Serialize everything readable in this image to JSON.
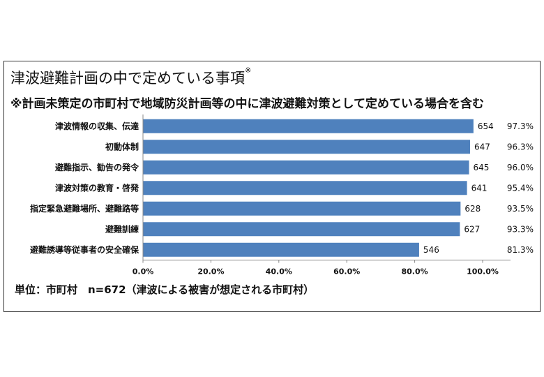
{
  "chart_data": {
    "type": "bar",
    "orientation": "horizontal",
    "title": "津波避難計画の中で定めている事項",
    "title_mark": "※",
    "subtitle": "※計画未策定の市町村で地域防災計画等の中に津波避難対策として定めている場合を含む",
    "categories": [
      "津波情報の収集、伝達",
      "初動体制",
      "避難指示、勧告の発令",
      "津波対策の教育・啓発",
      "指定緊急避難場所、避難路等",
      "避難訓練",
      "避難誘導等従事者の安全確保"
    ],
    "series": [
      {
        "values": [
          97.3,
          96.3,
          96.0,
          95.4,
          93.5,
          93.3,
          81.3
        ]
      }
    ],
    "counts": [
      654,
      647,
      645,
      641,
      628,
      627,
      546
    ],
    "pct_labels": [
      "97.3%",
      "96.3%",
      "96.0%",
      "95.4%",
      "93.5%",
      "93.3%",
      "81.3%"
    ],
    "x_ticks": [
      "0.0%",
      "20.0%",
      "40.0%",
      "60.0%",
      "80.0%",
      "100.0%"
    ],
    "xlim": [
      0,
      100
    ],
    "grid": false,
    "bar_color": "#4f81bd",
    "footnote": "単位：市町村　n=672（津波による被害が想定される市町村）"
  }
}
